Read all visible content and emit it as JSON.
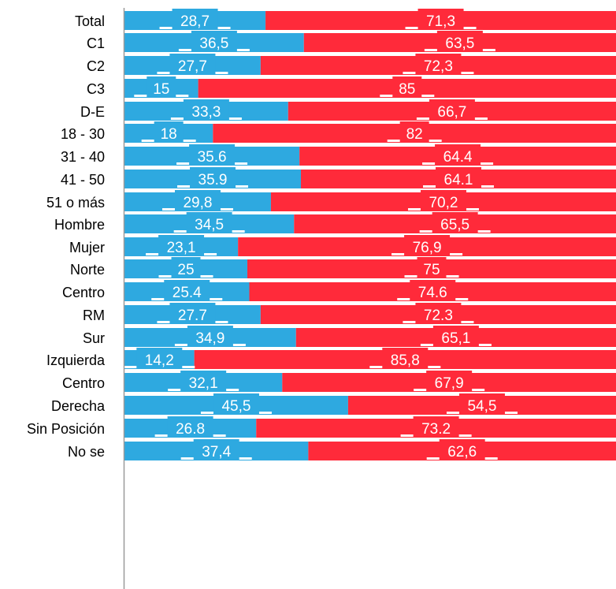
{
  "chart_data": {
    "type": "bar",
    "orientation": "horizontal",
    "stacked": true,
    "percent": true,
    "xlim": [
      0,
      100
    ],
    "grid": false,
    "legend": "none",
    "colors": {
      "blue": "#2EA9E0",
      "red": "#FF2A3A",
      "label_bg_white": "#ffffff"
    },
    "groups": [
      [
        0
      ],
      [
        1,
        2,
        3,
        4
      ],
      [
        5,
        6,
        7,
        8
      ],
      [
        9,
        10
      ],
      [
        11,
        12,
        13,
        14
      ],
      [
        15,
        16,
        17,
        18,
        19
      ]
    ],
    "categories": [
      "Total",
      "C1",
      "C2",
      "C3",
      "D-E",
      "18 - 30",
      "31 - 40",
      "41 - 50",
      "51 o más",
      "Hombre",
      "Mujer",
      "Norte",
      "Centro",
      "RM",
      "Sur",
      "Izquierda",
      "Centro",
      "Derecha",
      "Sin Posición",
      "No se"
    ],
    "series": [
      {
        "color": "#2EA9E0",
        "values": [
          28.7,
          36.5,
          27.7,
          15,
          33.3,
          18,
          35.6,
          35.9,
          29.8,
          34.5,
          23.1,
          25,
          25.4,
          27.7,
          34.9,
          14.2,
          32.1,
          45.5,
          26.8,
          37.4
        ],
        "labels": [
          "28,7",
          "36,5",
          "27,7",
          "15",
          "33,3",
          "18",
          "35.6",
          "35.9",
          "29,8",
          "34,5",
          "23,1",
          "25",
          "25.4",
          "27.7",
          "34,9",
          "14,2",
          "32,1",
          "45,5",
          "26.8",
          "37,4"
        ]
      },
      {
        "color": "#FF2A3A",
        "values": [
          71.3,
          63.5,
          72.3,
          85,
          66.7,
          82,
          64.4,
          64.1,
          70.2,
          65.5,
          76.9,
          75,
          74.6,
          72.3,
          65.1,
          85.8,
          67.9,
          54.5,
          73.2,
          62.6
        ],
        "labels": [
          "71,3",
          "63,5",
          "72,3",
          "85",
          "66,7",
          "82",
          "64.4",
          "64.1",
          "70,2",
          "65,5",
          "76,9",
          "75",
          "74.6",
          "72.3",
          "65,1",
          "85,8",
          "67,9",
          "54,5",
          "73.2",
          "62,6"
        ]
      }
    ]
  }
}
